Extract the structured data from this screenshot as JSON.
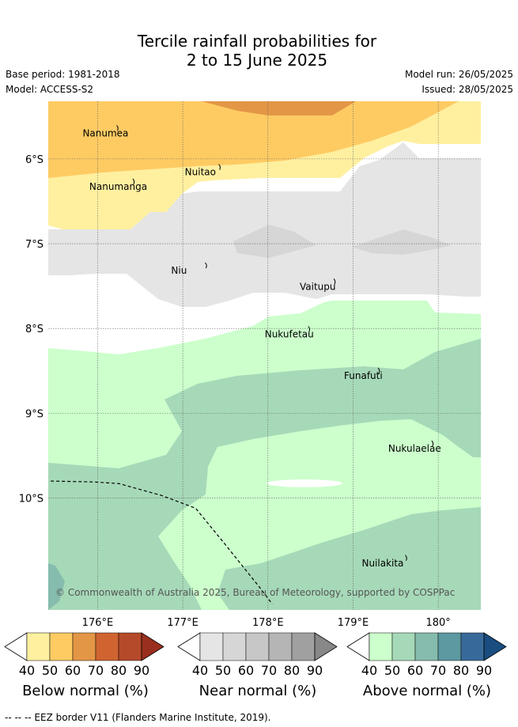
{
  "title": {
    "line1": "Tercile rainfall probabilities for",
    "line2": "2 to 15 June 2025"
  },
  "meta": {
    "base_period": "Base period: 1981-2018",
    "model": "Model: ACCESS-S2",
    "model_run": "Model run: 26/05/2025",
    "issued": "Issued: 28/05/2025"
  },
  "map": {
    "extent": {
      "lon": [
        175.42,
        180.5
      ],
      "lat": [
        -5.32,
        -11.32
      ]
    },
    "lat_ticks": [
      {
        "value": -6,
        "label": "6°S"
      },
      {
        "value": -7,
        "label": "7°S"
      },
      {
        "value": -8,
        "label": "8°S"
      },
      {
        "value": -9,
        "label": "9°S"
      },
      {
        "value": -10,
        "label": "10°S"
      }
    ],
    "lon_ticks": [
      {
        "value": 176,
        "label": "176°E"
      },
      {
        "value": 177,
        "label": "177°E"
      },
      {
        "value": 178,
        "label": "178°E"
      },
      {
        "value": 179,
        "label": "179°E"
      },
      {
        "value": 180,
        "label": "180°"
      }
    ],
    "places": [
      {
        "name": "Nanumea",
        "lon": 176.13,
        "lat": -5.66
      },
      {
        "name": "Nanumanga",
        "lon": 176.32,
        "lat": -6.29
      },
      {
        "name": "Nuitao",
        "lon": 177.33,
        "lat": -6.12
      },
      {
        "name": "Niu",
        "lon": 177.17,
        "lat": -7.28
      },
      {
        "name": "Vaitupu",
        "lon": 178.68,
        "lat": -7.47
      },
      {
        "name": "Nukufetau",
        "lon": 178.38,
        "lat": -8.03
      },
      {
        "name": "Funafuti",
        "lon": 179.2,
        "lat": -8.52
      },
      {
        "name": "Nukulaelae",
        "lon": 179.83,
        "lat": -9.38
      },
      {
        "name": "Nuilakita",
        "lon": 179.52,
        "lat": -10.73
      }
    ],
    "eez_border": [
      [
        175.45,
        -9.8
      ],
      [
        175.95,
        -9.81
      ],
      [
        176.25,
        -9.83
      ],
      [
        176.75,
        -9.97
      ],
      [
        177.15,
        -10.12
      ],
      [
        177.5,
        -10.55
      ],
      [
        177.9,
        -11.05
      ],
      [
        178.05,
        -11.25
      ]
    ],
    "credit": "© Commonwealth of Australia 2025, Bureau of Meteorology, supported by COSPPac"
  },
  "colors": {
    "below": [
      "#fff0a0",
      "#fecb63",
      "#e39646",
      "#d06431",
      "#b54a2a",
      "#9a2f1f"
    ],
    "near": [
      "#e5e5e5",
      "#d6d6d6",
      "#c7c7c7",
      "#b5b5b5",
      "#a0a0a0",
      "#888888"
    ],
    "above": [
      "#ccffcc",
      "#a6d9b8",
      "#85bcad",
      "#5c99a0",
      "#376a9a",
      "#1a4d80"
    ]
  },
  "colorbars": [
    {
      "key": "below",
      "label": "Below normal (%)",
      "ticks": [
        "40",
        "50",
        "60",
        "70",
        "80",
        "90"
      ]
    },
    {
      "key": "near",
      "label": "Near normal (%)",
      "ticks": [
        "40",
        "50",
        "60",
        "70",
        "80",
        "90"
      ]
    },
    {
      "key": "above",
      "label": "Above normal (%)",
      "ticks": [
        "40",
        "50",
        "60",
        "70",
        "80",
        "90"
      ]
    }
  ],
  "footer": "--  --  -- EEZ border V11 (Flanders Marine Institute, 2019)."
}
